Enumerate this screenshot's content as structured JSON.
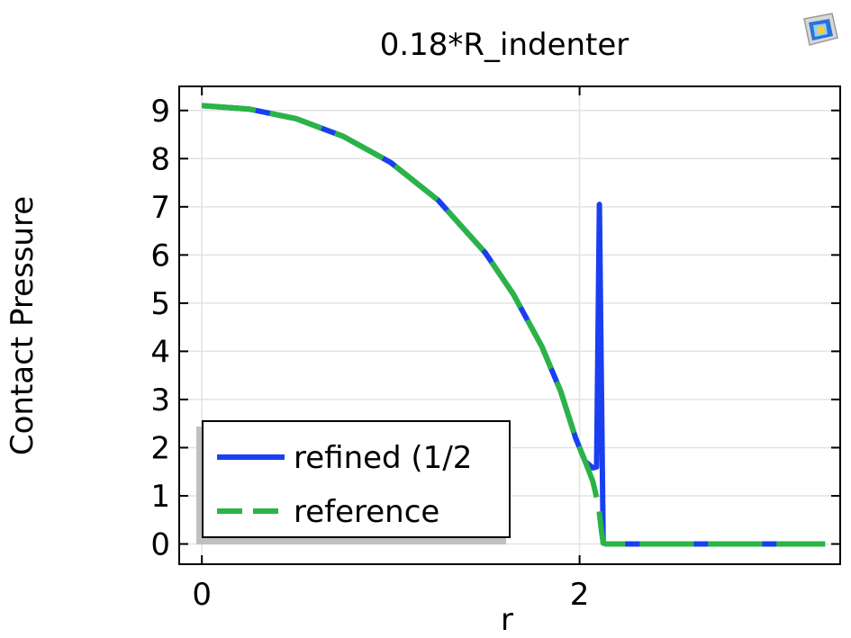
{
  "chart_data": {
    "type": "line",
    "title": "0.18*R_indenter",
    "xlabel": "r",
    "ylabel": "Contact Pressure",
    "xlim": [
      -0.12,
      3.38
    ],
    "ylim": [
      -0.42,
      9.5
    ],
    "xticks": [
      "0",
      "2"
    ],
    "xtick_values": [
      0,
      2
    ],
    "yticks": [
      "0",
      "1",
      "2",
      "3",
      "4",
      "5",
      "6",
      "7",
      "8",
      "9"
    ],
    "ytick_values": [
      0,
      1,
      2,
      3,
      4,
      5,
      6,
      7,
      8,
      9
    ],
    "grid": true,
    "legend_position": "bottom-left",
    "series": [
      {
        "name": "refined (1/2",
        "color": "#1a3ff0",
        "style": "solid",
        "x": [
          0,
          0.25,
          0.5,
          0.75,
          1.0,
          1.25,
          1.5,
          1.65,
          1.8,
          1.9,
          1.98,
          2.03,
          2.07,
          2.09,
          2.105,
          2.125,
          2.14,
          2.5,
          2.8,
          3.0,
          3.3
        ],
        "y": [
          9.1,
          9.03,
          8.83,
          8.46,
          7.92,
          7.14,
          6.05,
          5.18,
          4.1,
          3.17,
          2.19,
          1.71,
          1.58,
          1.6,
          7.05,
          0.02,
          0.0,
          0.0,
          0.0,
          0.0,
          0.0
        ]
      },
      {
        "name": "reference",
        "color": "#2ab446",
        "style": "dashed",
        "x": [
          0,
          0.25,
          0.5,
          0.75,
          1.0,
          1.25,
          1.5,
          1.65,
          1.8,
          1.9,
          1.98,
          2.03,
          2.07,
          2.1,
          2.115,
          2.125,
          2.14,
          2.5,
          2.8,
          3.0,
          3.3
        ],
        "y": [
          9.1,
          9.03,
          8.83,
          8.46,
          7.92,
          7.14,
          6.05,
          5.18,
          4.1,
          3.17,
          2.19,
          1.71,
          1.3,
          0.8,
          0.3,
          0.02,
          0.0,
          0.0,
          0.0,
          0.0,
          0.0
        ]
      }
    ]
  },
  "toolbar": {
    "icon": "app-logo-icon"
  }
}
